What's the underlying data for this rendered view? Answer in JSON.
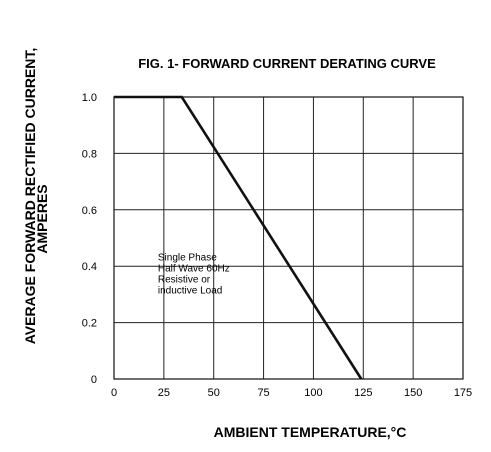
{
  "chart_data": {
    "type": "line",
    "title": "FIG. 1- FORWARD CURRENT DERATING CURVE",
    "xlabel": "AMBIENT TEMPERATURE,°C",
    "ylabel_lines": [
      "AVERAGE FORWARD RECTIFIED CURRENT,",
      "AMPERES"
    ],
    "xlim": [
      0,
      175
    ],
    "ylim": [
      0,
      1.0
    ],
    "x_ticks": [
      0,
      25,
      50,
      75,
      100,
      125,
      150,
      175
    ],
    "x_tick_labels": [
      "0",
      "25",
      "50",
      "75",
      "100",
      "125",
      "150",
      "175"
    ],
    "y_ticks": [
      0,
      0.2,
      0.4,
      0.6,
      0.8,
      1.0
    ],
    "y_tick_labels": [
      "0",
      "0.2",
      "0.4",
      "0.6",
      "0.8",
      "1.0"
    ],
    "grid": true,
    "series": [
      {
        "x": [
          0,
          34,
          124
        ],
        "y": [
          1.0,
          1.0,
          0
        ]
      }
    ],
    "annotation": {
      "lines": [
        "Single Phase",
        "Half Wave 60Hz",
        "Resistive or",
        "inductive Load"
      ],
      "x": 22,
      "y": 0.42
    }
  }
}
